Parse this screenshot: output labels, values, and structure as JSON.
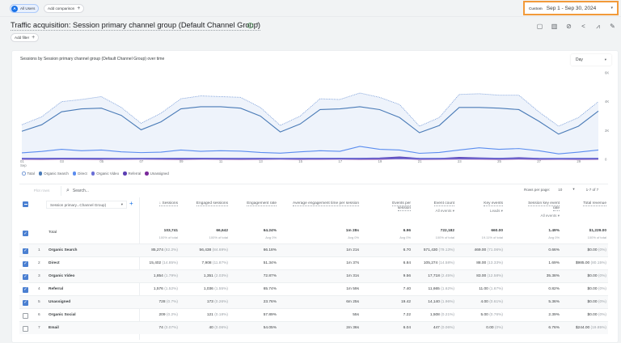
{
  "segments": {
    "all_users_avatar": "A",
    "all_users_label": "All Users",
    "add_comparison_label": "Add comparison"
  },
  "date_range": {
    "label": "Custom",
    "value": "Sep 1 - Sep 30, 2024"
  },
  "header": {
    "title": "Traffic acquisition: Session primary channel group (Default Channel Group)",
    "add_filter_label": "Add filter",
    "toolbar_icons": [
      "comment-icon",
      "compare-columns-icon",
      "insights-icon",
      "share-icon",
      "trend-icon",
      "edit-pencil-icon"
    ]
  },
  "chart": {
    "title": "Sessions by Session primary channel group (Default Channel Group) over time",
    "granularity": "Day"
  },
  "chart_data": {
    "type": "line",
    "title": "Sessions by Session primary channel group (Default Channel Group) over time",
    "xlabel": "",
    "ylabel": "Sessions",
    "x": [
      1,
      2,
      3,
      4,
      5,
      6,
      7,
      8,
      9,
      10,
      11,
      12,
      13,
      14,
      15,
      16,
      17,
      18,
      19,
      20,
      21,
      22,
      23,
      24,
      25,
      26,
      27,
      28,
      29,
      30
    ],
    "x_tick_labels": [
      "01\nSep",
      "03",
      "05",
      "07",
      "09",
      "11",
      "13",
      "15",
      "17",
      "19",
      "21",
      "23",
      "25",
      "27",
      "29"
    ],
    "x_tick_days": [
      1,
      3,
      5,
      7,
      9,
      11,
      13,
      15,
      17,
      19,
      21,
      23,
      25,
      27,
      29
    ],
    "y_tick_labels": [
      "0",
      "2K",
      "4K",
      "6K"
    ],
    "ylim": [
      0,
      6000
    ],
    "grid": false,
    "legend_position": "bottom-left",
    "series": [
      {
        "name": "Total",
        "style": "dotted",
        "color": "#7c9fd9",
        "values": [
          2400,
          2950,
          4000,
          4150,
          4350,
          3600,
          2500,
          3200,
          4200,
          4400,
          4350,
          4300,
          3600,
          2350,
          3000,
          4200,
          4150,
          4600,
          4300,
          3800,
          2300,
          2900,
          4500,
          4550,
          4450,
          4450,
          3300,
          2300,
          2900,
          4000
        ]
      },
      {
        "name": "Organic Search",
        "style": "solid",
        "color": "#4a7bb7",
        "values": [
          1950,
          2400,
          3300,
          3500,
          3550,
          3050,
          2050,
          2600,
          3500,
          3650,
          3650,
          3550,
          3000,
          1900,
          2450,
          3450,
          3500,
          3650,
          3450,
          2900,
          1850,
          2350,
          3600,
          3600,
          3550,
          3450,
          2650,
          1750,
          2300,
          3350
        ]
      },
      {
        "name": "Direct",
        "style": "solid",
        "color": "#5b8def",
        "values": [
          450,
          550,
          700,
          600,
          650,
          520,
          470,
          500,
          650,
          560,
          600,
          570,
          480,
          430,
          520,
          600,
          560,
          900,
          700,
          650,
          420,
          480,
          650,
          800,
          700,
          750,
          600,
          380,
          500,
          650
        ]
      },
      {
        "name": "Organic Video",
        "style": "solid",
        "color": "#6a6fd6",
        "values": [
          60,
          55,
          70,
          65,
          60,
          55,
          50,
          60,
          65,
          70,
          60,
          55,
          60,
          50,
          55,
          60,
          65,
          55,
          70,
          80,
          55,
          60,
          70,
          65,
          60,
          70,
          55,
          50,
          55,
          60
        ]
      },
      {
        "name": "Referral",
        "style": "solid",
        "color": "#5c3fb3",
        "values": [
          50,
          55,
          60,
          50,
          55,
          45,
          50,
          55,
          60,
          50,
          55,
          50,
          55,
          45,
          50,
          55,
          50,
          60,
          80,
          150,
          55,
          45,
          120,
          90,
          60,
          100,
          55,
          45,
          50,
          55
        ]
      },
      {
        "name": "Unassigned",
        "style": "solid",
        "color": "#7a2a9b",
        "values": [
          25,
          20,
          30,
          25,
          20,
          25,
          30,
          25,
          20,
          30,
          25,
          20,
          25,
          30,
          20,
          25,
          30,
          20,
          25,
          60,
          20,
          25,
          40,
          30,
          20,
          35,
          20,
          25,
          20,
          25
        ]
      }
    ]
  },
  "table_controls": {
    "plot_rows_label": "Plot rows",
    "search_placeholder": "Search...",
    "rows_per_page_label": "Rows per page:",
    "rows_per_page_value": "10",
    "range_label": "1-7 of 7"
  },
  "table": {
    "dimension_label": "Session primary...Channel Group)",
    "columns": [
      {
        "label": "Sessions",
        "sorted": "desc"
      },
      {
        "label": "Engaged sessions"
      },
      {
        "label": "Engagement rate"
      },
      {
        "label": "Average engagement time per session"
      },
      {
        "label": "Events per session"
      },
      {
        "label": "Event count",
        "sub": "All events"
      },
      {
        "label": "Key events",
        "sub": "Leads"
      },
      {
        "label": "Session key event rate",
        "sub": "All events"
      },
      {
        "label": "Total revenue"
      }
    ],
    "total": {
      "label": "Total",
      "values": [
        "103,741",
        "66,642",
        "64.24%",
        "1m 28s",
        "6.96",
        "722,182",
        "660.00",
        "1.49%",
        "$1,229.00"
      ],
      "subs": [
        "100% of total",
        "100% of total",
        "Avg 0%",
        "Avg 0%",
        "Avg 0%",
        "100% of total",
        "19.11% of total",
        "Avg 0%",
        "100% of total"
      ]
    },
    "rows": [
      {
        "idx": "1",
        "name": "Organic Search",
        "checked": true,
        "cells": [
          [
            "85,274",
            "(82.2%)"
          ],
          [
            "56,438",
            "(84.69%)"
          ],
          [
            "66.18%",
            ""
          ],
          [
            "1m 21s",
            ""
          ],
          [
            "6.70",
            ""
          ],
          [
            "571,430",
            "(79.13%)"
          ],
          [
            "469.00",
            "(71.06%)"
          ],
          [
            "0.66%",
            ""
          ],
          [
            "$0.00",
            "(0%)"
          ]
        ]
      },
      {
        "idx": "2",
        "name": "Direct",
        "checked": true,
        "cells": [
          [
            "15,402",
            "(14.85%)"
          ],
          [
            "7,908",
            "(11.87%)"
          ],
          [
            "51.34%",
            ""
          ],
          [
            "1m 37s",
            ""
          ],
          [
            "6.84",
            ""
          ],
          [
            "105,274",
            "(14.58%)"
          ],
          [
            "88.00",
            "(13.33%)"
          ],
          [
            "1.69%",
            ""
          ],
          [
            "$985.00",
            "(80.15%)"
          ]
        ]
      },
      {
        "idx": "3",
        "name": "Organic Video",
        "checked": true,
        "cells": [
          [
            "1,854",
            "(1.79%)"
          ],
          [
            "1,351",
            "(2.03%)"
          ],
          [
            "72.87%",
            ""
          ],
          [
            "1m 31s",
            ""
          ],
          [
            "9.56",
            ""
          ],
          [
            "17,718",
            "(2.45%)"
          ],
          [
            "83.00",
            "(12.58%)"
          ],
          [
            "35.38%",
            ""
          ],
          [
            "$0.00",
            "(0%)"
          ]
        ]
      },
      {
        "idx": "4",
        "name": "Referral",
        "checked": true,
        "cells": [
          [
            "1,576",
            "(1.52%)"
          ],
          [
            "1,036",
            "(1.55%)"
          ],
          [
            "65.74%",
            ""
          ],
          [
            "1m 59s",
            ""
          ],
          [
            "7.40",
            ""
          ],
          [
            "11,665",
            "(1.62%)"
          ],
          [
            "11.00",
            "(1.67%)"
          ],
          [
            "0.82%",
            ""
          ],
          [
            "$0.00",
            "(0%)"
          ]
        ]
      },
      {
        "idx": "5",
        "name": "Unassigned",
        "checked": true,
        "cells": [
          [
            "728",
            "(0.7%)"
          ],
          [
            "173",
            "(0.26%)"
          ],
          [
            "23.76%",
            ""
          ],
          [
            "6m 25s",
            ""
          ],
          [
            "19.42",
            ""
          ],
          [
            "14,140",
            "(1.96%)"
          ],
          [
            "4.00",
            "(0.61%)"
          ],
          [
            "5.36%",
            ""
          ],
          [
            "$0.00",
            "(0%)"
          ]
        ]
      },
      {
        "idx": "6",
        "name": "Organic Social",
        "checked": false,
        "cells": [
          [
            "209",
            "(0.2%)"
          ],
          [
            "121",
            "(0.18%)"
          ],
          [
            "57.89%",
            ""
          ],
          [
            "55s",
            ""
          ],
          [
            "7.22",
            ""
          ],
          [
            "1,508",
            "(0.21%)"
          ],
          [
            "5.00",
            "(0.76%)"
          ],
          [
            "2.39%",
            ""
          ],
          [
            "$0.00",
            "(0%)"
          ]
        ]
      },
      {
        "idx": "7",
        "name": "Email",
        "checked": false,
        "cells": [
          [
            "74",
            "(0.07%)"
          ],
          [
            "40",
            "(0.06%)"
          ],
          [
            "54.05%",
            ""
          ],
          [
            "2m 36s",
            ""
          ],
          [
            "6.04",
            ""
          ],
          [
            "447",
            "(0.06%)"
          ],
          [
            "0.00",
            "(0%)"
          ],
          [
            "6.76%",
            ""
          ],
          [
            "$244.00",
            "(19.85%)"
          ]
        ]
      }
    ]
  }
}
